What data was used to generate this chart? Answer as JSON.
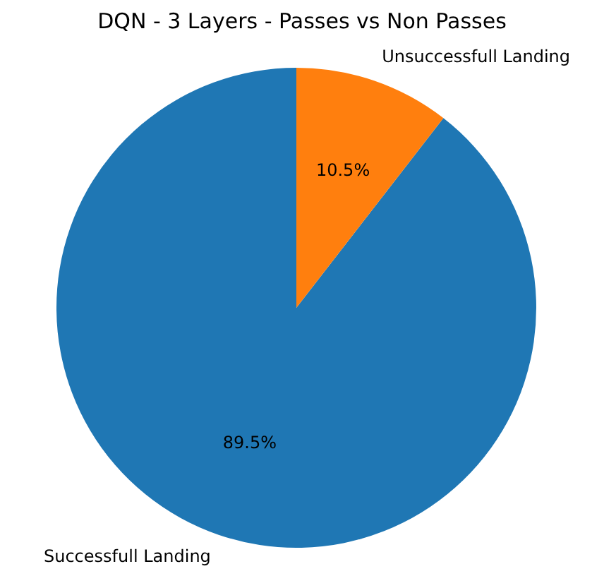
{
  "chart_data": {
    "type": "pie",
    "title": "DQN - 3 Layers - Passes vs Non Passes",
    "categories": [
      "Successfull Landing",
      "Unsuccessfull Landing"
    ],
    "values": [
      89.5,
      10.5
    ],
    "colors": [
      "#1f77b4",
      "#ff7f0e"
    ],
    "value_labels": [
      "89.5%",
      "10.5%"
    ],
    "legend": false
  }
}
